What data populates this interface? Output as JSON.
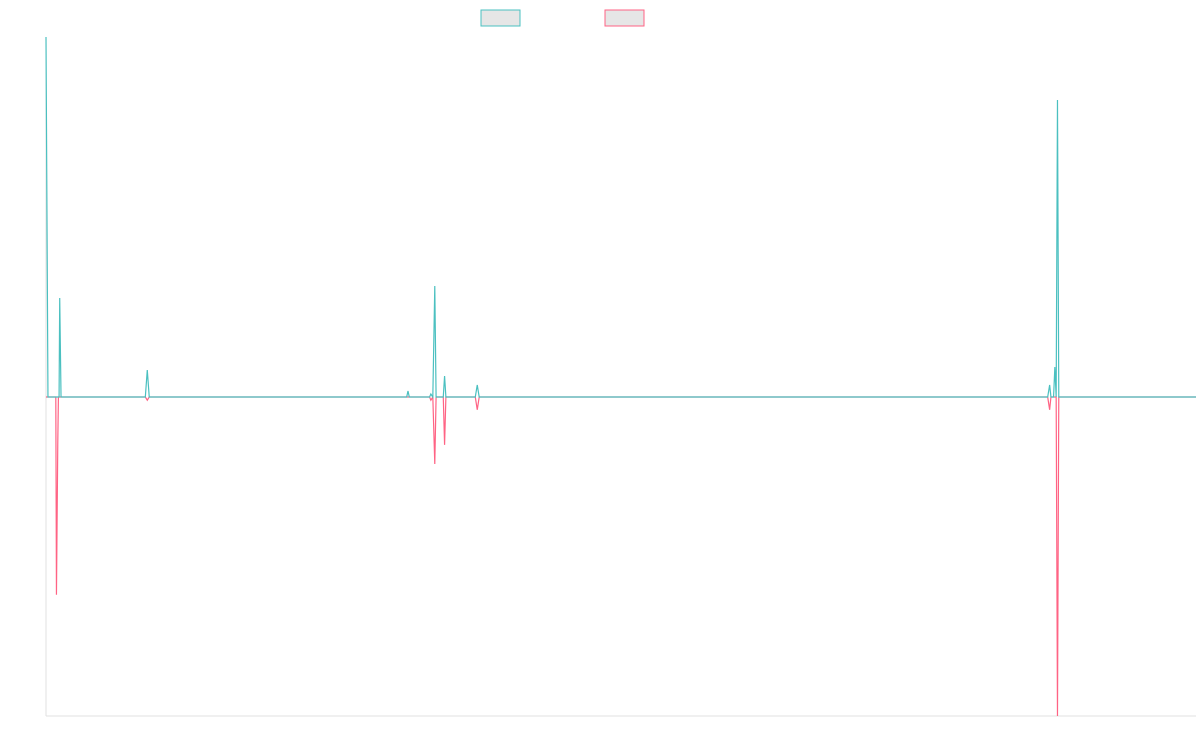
{
  "chart_data": {
    "type": "line",
    "title": "",
    "xlabel": "",
    "ylabel": "",
    "legend": {
      "position": "top-center",
      "entries": [
        "",
        ""
      ]
    },
    "colors": {
      "series_a": "#4bc0c0",
      "series_b": "#ff6384",
      "legend_fill": "#e6e6e6",
      "axis": "#e0e0e0"
    },
    "grid": false,
    "xlim": [
      0,
      176
    ],
    "ylim": [
      -100,
      120
    ],
    "series": [
      {
        "points": [
          [
            0,
            120
          ],
          [
            0.3,
            0
          ],
          [
            2,
            0
          ],
          [
            2.1,
            33
          ],
          [
            2.3,
            0
          ],
          [
            15.2,
            0
          ],
          [
            15.5,
            9
          ],
          [
            15.8,
            0
          ],
          [
            55.2,
            0
          ],
          [
            55.4,
            2
          ],
          [
            55.6,
            0
          ],
          [
            56.8,
            0
          ],
          [
            57,
            0
          ],
          [
            57.3,
            0
          ],
          [
            58.7,
            0
          ],
          [
            58.9,
            1
          ],
          [
            59.2,
            0
          ],
          [
            59.5,
            37
          ],
          [
            59.7,
            0
          ],
          [
            60.8,
            0
          ],
          [
            61,
            7
          ],
          [
            61.2,
            0
          ],
          [
            65.7,
            0
          ],
          [
            66,
            4
          ],
          [
            66.3,
            0
          ],
          [
            90.5,
            0
          ],
          [
            90.7,
            0
          ],
          [
            90.9,
            0
          ],
          [
            153.3,
            0
          ],
          [
            153.6,
            4
          ],
          [
            153.8,
            0
          ],
          [
            154.2,
            0
          ],
          [
            154.4,
            10
          ],
          [
            154.6,
            0
          ],
          [
            154.8,
            99
          ],
          [
            155.0,
            0
          ],
          [
            176,
            0
          ]
        ]
      },
      {
        "points": [
          [
            0,
            0
          ],
          [
            1.5,
            0
          ],
          [
            1.6,
            -62
          ],
          [
            1.8,
            -15
          ],
          [
            1.9,
            0
          ],
          [
            15.2,
            0
          ],
          [
            15.5,
            -1
          ],
          [
            15.8,
            0
          ],
          [
            56.8,
            0
          ],
          [
            57,
            0
          ],
          [
            57.3,
            0
          ],
          [
            58.7,
            0
          ],
          [
            58.9,
            -1
          ],
          [
            59.2,
            0
          ],
          [
            59.5,
            -21
          ],
          [
            59.7,
            0
          ],
          [
            60.8,
            0
          ],
          [
            61,
            -15
          ],
          [
            61.2,
            0
          ],
          [
            65.7,
            0
          ],
          [
            66,
            -4
          ],
          [
            66.3,
            0
          ],
          [
            90.5,
            0
          ],
          [
            90.7,
            0
          ],
          [
            90.9,
            0
          ],
          [
            153.3,
            0
          ],
          [
            153.6,
            -4
          ],
          [
            153.8,
            0
          ],
          [
            154.6,
            0
          ],
          [
            154.8,
            -100
          ],
          [
            155.0,
            0
          ],
          [
            176,
            0
          ]
        ]
      }
    ]
  }
}
